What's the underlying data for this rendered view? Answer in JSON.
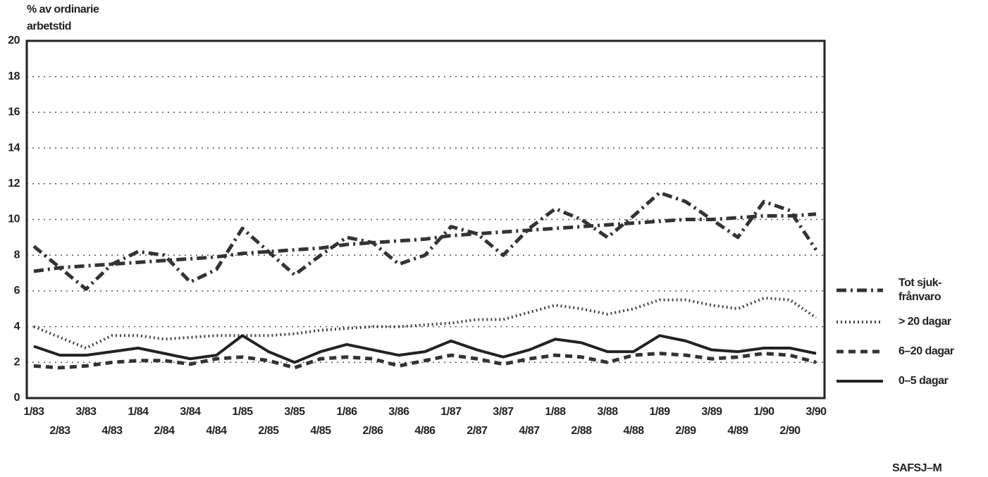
{
  "chart_data": {
    "type": "line",
    "ylabel": [
      "% av ordinarie",
      "arbetstid"
    ],
    "source": "SAFSJ–M",
    "categories": [
      "1/83",
      "2/83",
      "3/83",
      "4/83",
      "1/84",
      "2/84",
      "3/84",
      "4/84",
      "1/85",
      "2/85",
      "3/85",
      "4/85",
      "1/86",
      "2/86",
      "3/86",
      "4/86",
      "1/87",
      "2/87",
      "3/87",
      "4/87",
      "1/88",
      "2/88",
      "3/88",
      "4/88",
      "1/89",
      "2/89",
      "3/89",
      "4/89",
      "1/90",
      "2/90",
      "3/90"
    ],
    "series": [
      {
        "name": "Tot sjuk-frånvaro",
        "color": "#333333",
        "dash": "14 6 3 6",
        "width": 5,
        "values": [
          8.5,
          7.3,
          6.1,
          7.5,
          8.2,
          8.0,
          6.5,
          7.2,
          9.5,
          8.2,
          6.9,
          8.0,
          9.0,
          8.7,
          7.5,
          8.0,
          9.6,
          9.2,
          8.0,
          9.5,
          10.6,
          10.0,
          9.0,
          10.2,
          11.5,
          11.0,
          10.0,
          9.0,
          11.0,
          10.5,
          8.3
        ]
      },
      {
        "color": "#333333",
        "dash": "14 6 3 6",
        "width": 5,
        "values": [
          7.1,
          7.3,
          7.4,
          7.5,
          7.6,
          7.7,
          7.8,
          7.9,
          8.1,
          8.2,
          8.3,
          8.4,
          8.6,
          8.7,
          8.8,
          8.9,
          9.1,
          9.2,
          9.3,
          9.4,
          9.5,
          9.6,
          9.7,
          9.8,
          9.9,
          10.0,
          10.0,
          10.1,
          10.2,
          10.2,
          10.3
        ]
      },
      {
        "name": "> 20 dagar",
        "color": "#444444",
        "dash": "2 4",
        "width": 4,
        "values": [
          4.0,
          3.4,
          2.8,
          3.5,
          3.5,
          3.3,
          3.4,
          3.5,
          3.5,
          3.5,
          3.6,
          3.8,
          3.9,
          4.0,
          4.0,
          4.1,
          4.2,
          4.4,
          4.4,
          4.8,
          5.2,
          5.0,
          4.7,
          5.0,
          5.5,
          5.5,
          5.2,
          5.0,
          5.6,
          5.5,
          4.5
        ]
      },
      {
        "name": "6–20 dagar",
        "color": "#333333",
        "dash": "10 7",
        "width": 5,
        "values": [
          1.8,
          1.7,
          1.8,
          2.0,
          2.1,
          2.1,
          1.9,
          2.2,
          2.3,
          2.1,
          1.7,
          2.2,
          2.3,
          2.2,
          1.8,
          2.1,
          2.4,
          2.2,
          1.9,
          2.2,
          2.4,
          2.3,
          2.0,
          2.4,
          2.5,
          2.4,
          2.2,
          2.3,
          2.5,
          2.4,
          2.0
        ]
      },
      {
        "name": "0–5 dagar",
        "color": "#222222",
        "dash": "none",
        "width": 4,
        "values": [
          2.9,
          2.4,
          2.4,
          2.6,
          2.8,
          2.5,
          2.2,
          2.4,
          3.5,
          2.6,
          2.0,
          2.6,
          3.0,
          2.7,
          2.4,
          2.6,
          3.2,
          2.7,
          2.3,
          2.7,
          3.3,
          3.1,
          2.6,
          2.6,
          3.5,
          3.2,
          2.7,
          2.6,
          2.8,
          2.8,
          2.5
        ]
      }
    ],
    "ylim": [
      0,
      20
    ],
    "yticks": [
      0,
      2,
      4,
      6,
      8,
      10,
      12,
      14,
      16,
      18,
      20
    ],
    "grid": true
  }
}
